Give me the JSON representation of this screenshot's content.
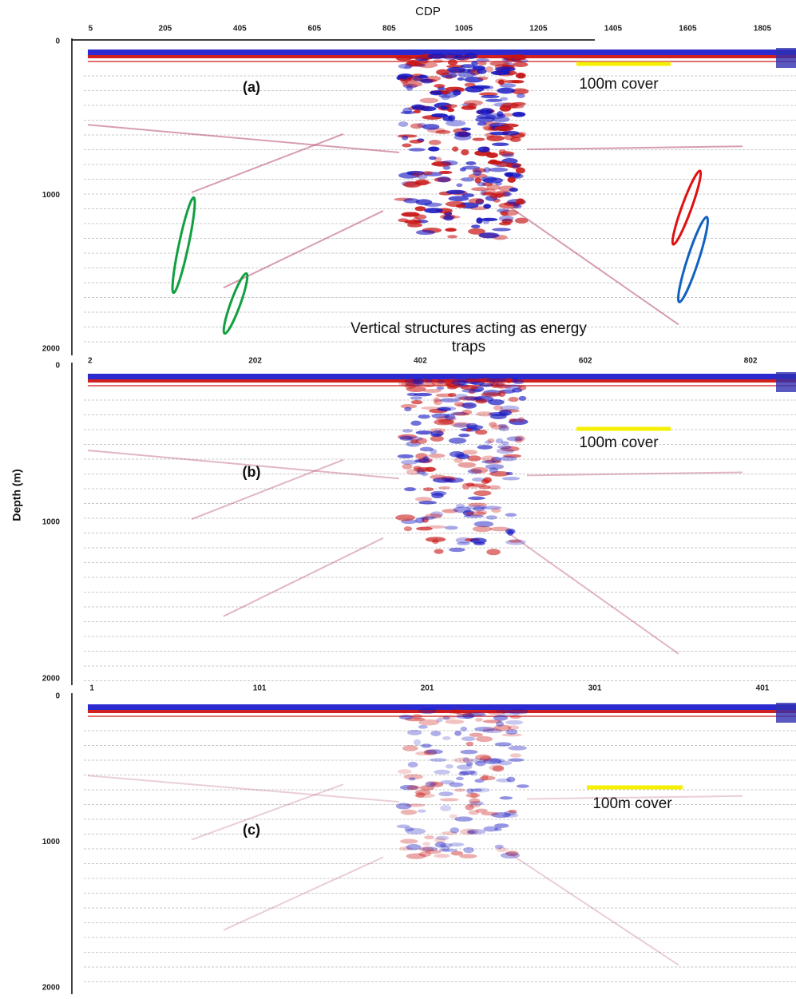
{
  "chart_data": [
    {
      "type": "seismic",
      "xlabel": "CDP",
      "panel_label": "(a)",
      "note": "100m cover",
      "annotation": "Vertical structures acting as energy traps",
      "xlim": [
        -45,
        1895
      ],
      "xticks": [
        5,
        205,
        405,
        605,
        805,
        1005,
        1205,
        1405,
        1605,
        1805
      ],
      "ylim": [
        0,
        2000
      ],
      "yticks": [
        0,
        1000,
        2000
      ]
    },
    {
      "type": "seismic",
      "ylabel": "Depth (m)",
      "panel_label": "(b)",
      "note": "100m cover",
      "xlim": [
        -20,
        857
      ],
      "xticks": [
        2,
        202,
        402,
        602,
        802
      ],
      "ylim": [
        0,
        2000
      ],
      "yticks": [
        0,
        1000,
        2000
      ]
    },
    {
      "type": "seismic",
      "panel_label": "(c)",
      "note": "100m cover",
      "xlim": [
        -11,
        421
      ],
      "xticks": [
        1,
        101,
        201,
        301,
        401
      ],
      "ylim": [
        0,
        2000
      ],
      "yticks": [
        0,
        1000,
        2000
      ]
    }
  ]
}
